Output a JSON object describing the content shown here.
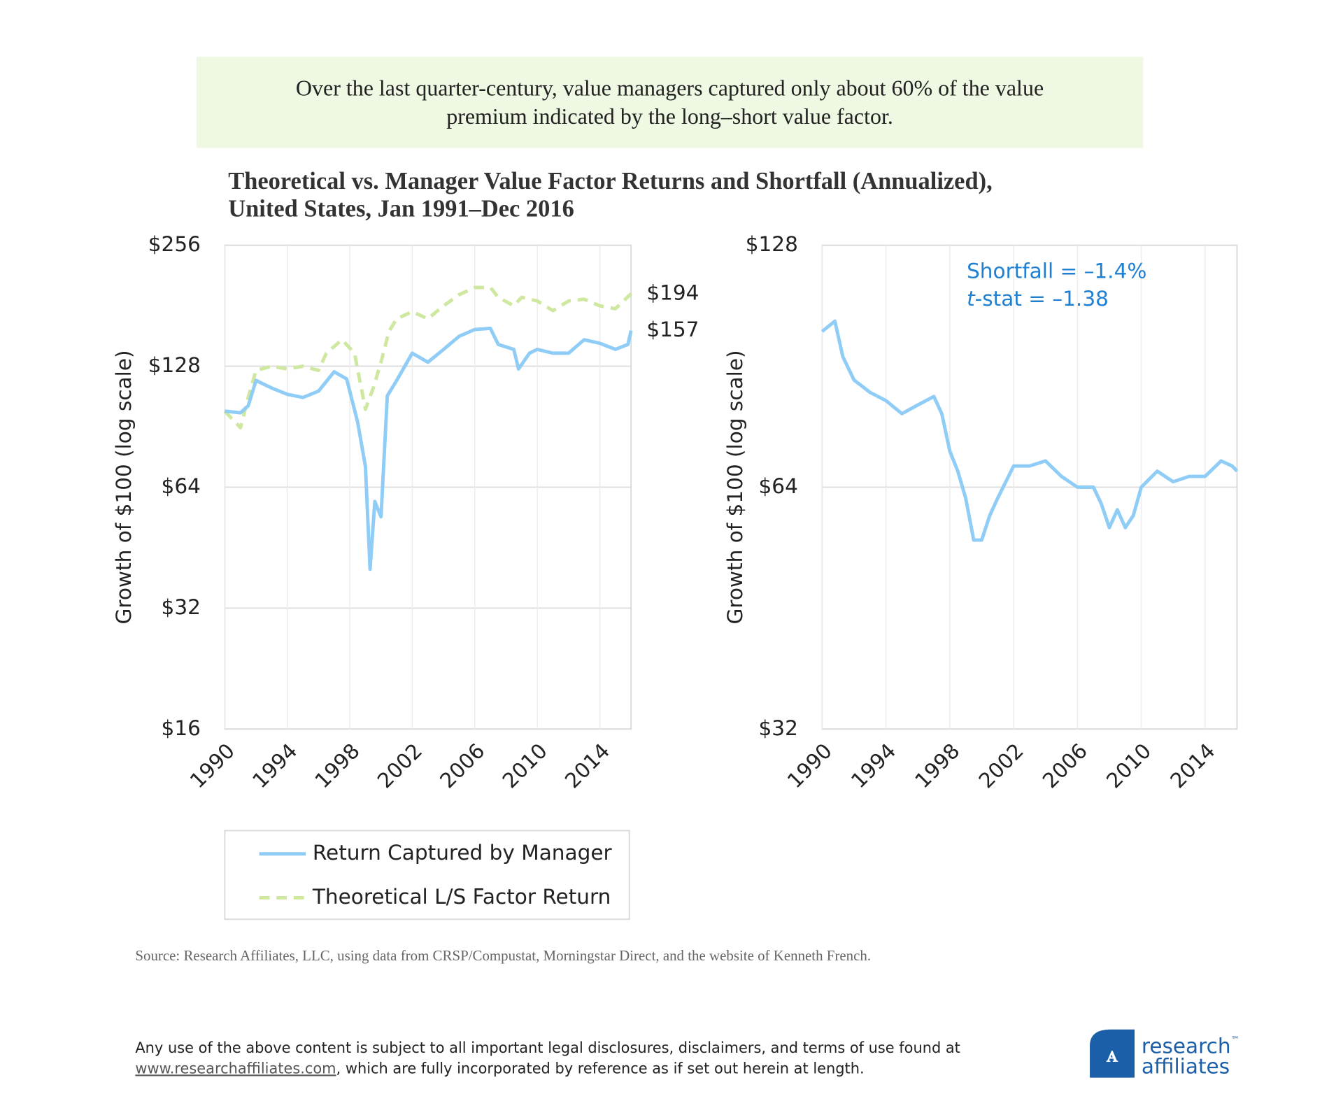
{
  "header": {
    "callout": [
      "Over the last quarter-century, value managers captured only about 60% of the value",
      "premium indicated by the long–short value factor."
    ]
  },
  "title": [
    "Theoretical vs. Manager Value Factor Returns and Shortfall (Annualized),",
    "United States, Jan 1991–Dec 2016"
  ],
  "chart_data": [
    {
      "type": "line",
      "log_scale": true,
      "grid": true,
      "legend": "bottom",
      "y_label": "Growth of $100 (log scale)",
      "xlim": [
        1990,
        2016
      ],
      "xticks": [
        1990,
        1994,
        1998,
        2002,
        2006,
        2010,
        2014
      ],
      "ylim": [
        16,
        256
      ],
      "yticks": [
        {
          "value": 16,
          "label": "$16"
        },
        {
          "value": 32,
          "label": "$32"
        },
        {
          "value": 64,
          "label": "$64"
        },
        {
          "value": 128,
          "label": "$128"
        },
        {
          "value": 256,
          "label": "$256"
        }
      ],
      "series": [
        {
          "name": "Return Captured by Manager",
          "color": "#8fcdf7",
          "dash": false,
          "x": [
            1990,
            1991,
            1991.5,
            1992,
            1993,
            1994,
            1995,
            1996,
            1997,
            1997.8,
            1998.5,
            1999,
            1999.3,
            1999.6,
            2000,
            2000.4,
            2001,
            2002,
            2003,
            2004,
            2005,
            2006,
            2007,
            2007.5,
            2008.5,
            2008.8,
            2009.5,
            2010,
            2011,
            2012,
            2013,
            2014,
            2015,
            2015.8,
            2016
          ],
          "values": [
            99,
            98,
            102,
            118,
            113,
            109,
            107,
            111,
            124,
            119,
            93,
            72,
            40,
            59,
            54,
            108,
            118,
            138,
            131,
            141,
            152,
            158,
            159,
            145,
            141,
            126,
            138,
            141,
            138,
            138,
            149,
            146,
            141,
            145,
            157
          ],
          "value_labels": [
            null,
            null,
            null,
            null,
            null,
            null,
            null,
            null,
            null,
            null,
            null,
            null,
            null,
            null,
            null,
            null,
            null,
            null,
            null,
            null,
            null,
            null,
            null,
            null,
            null,
            null,
            null,
            null,
            null,
            null,
            null,
            null,
            null,
            null,
            "$157"
          ]
        },
        {
          "name": "Theoretical L/S Factor Return",
          "color": "#cfe8a0",
          "dash": true,
          "x": [
            1990,
            1991,
            1991.5,
            1992,
            1993,
            1994,
            1995,
            1996,
            1996.5,
            1997.5,
            1998.3,
            1999,
            1999.5,
            2000,
            2000.5,
            2001,
            2002,
            2003,
            2004,
            2005,
            2006,
            2007,
            2007.5,
            2008.5,
            2009,
            2010,
            2011,
            2012,
            2013,
            2014,
            2015,
            2016
          ],
          "values": [
            99,
            90,
            107,
            125,
            128,
            126,
            128,
            125,
            138,
            149,
            138,
            100,
            113,
            131,
            156,
            168,
            175,
            168,
            181,
            193,
            201,
            201,
            190,
            181,
            190,
            186,
            176,
            186,
            188,
            181,
            178,
            194
          ],
          "value_labels": [
            null,
            null,
            null,
            null,
            null,
            null,
            null,
            null,
            null,
            null,
            null,
            null,
            null,
            null,
            null,
            null,
            null,
            null,
            null,
            null,
            null,
            null,
            null,
            null,
            null,
            null,
            null,
            null,
            null,
            null,
            null,
            "$194"
          ]
        }
      ]
    },
    {
      "type": "line",
      "log_scale": true,
      "grid": true,
      "y_label": "Growth of $100 (log scale)",
      "annotations": [
        "Shortfall = –1.4%",
        {
          "italic": "t",
          "rest": "-stat = –1.38"
        }
      ],
      "xlim": [
        1990,
        2016
      ],
      "xticks": [
        1990,
        1994,
        1998,
        2002,
        2006,
        2010,
        2014
      ],
      "ylim": [
        32,
        128
      ],
      "yticks": [
        {
          "value": 32,
          "label": "$32"
        },
        {
          "value": 64,
          "label": "$64"
        },
        {
          "value": 128,
          "label": "$128"
        }
      ],
      "series": [
        {
          "color": "#8fcdf7",
          "dash": false,
          "x": [
            1990,
            1990.8,
            1991.3,
            1992,
            1993,
            1994,
            1995,
            1996,
            1997,
            1997.5,
            1998,
            1998.5,
            1999,
            1999.5,
            2000,
            2000.5,
            2001,
            2002,
            2003,
            2004,
            2005,
            2006,
            2007,
            2007.5,
            2008,
            2008.5,
            2009,
            2009.5,
            2010,
            2011,
            2012,
            2013,
            2014,
            2015,
            2015.7,
            2016
          ],
          "values": [
            100,
            103,
            93,
            87,
            84,
            82,
            79,
            81,
            83,
            79,
            71,
            67,
            62,
            55,
            55,
            59,
            62,
            68,
            68,
            69,
            66,
            64,
            64,
            61,
            57,
            60,
            57,
            59,
            64,
            67,
            65,
            66,
            66,
            69,
            68,
            67
          ]
        }
      ]
    }
  ],
  "source": "Source: Research Affiliates, LLC, using data from CRSP/Compustat, Morningstar Direct, and the website of Kenneth French.",
  "footer": {
    "line1": "Any use of the above content is subject to all important legal disclosures, disclaimers, and terms of use found at",
    "link": "www.researchaffiliates.com",
    "line2": ", which are fully incorporated by reference as if set out herein at length."
  },
  "logo": {
    "top": "research",
    "mark": "™",
    "bottom": "affiliates"
  }
}
